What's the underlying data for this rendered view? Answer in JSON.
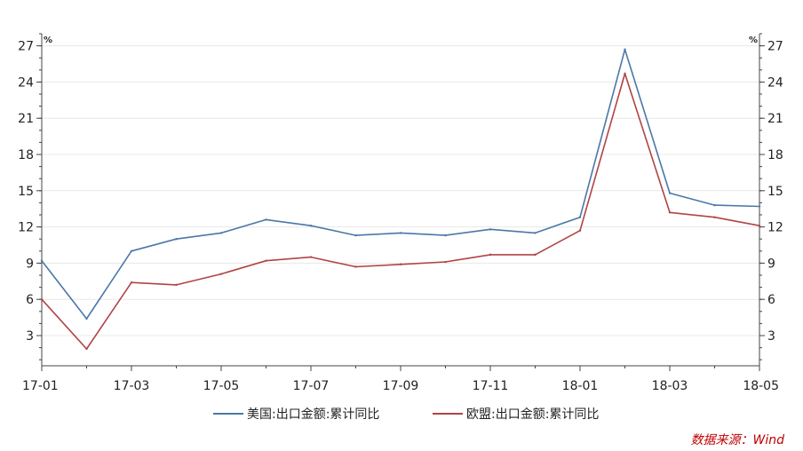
{
  "chart_data": {
    "type": "line",
    "x": [
      "17-01",
      "17-02",
      "17-03",
      "17-04",
      "17-05",
      "17-06",
      "17-07",
      "17-08",
      "17-09",
      "17-10",
      "17-11",
      "17-12",
      "18-01",
      "18-02",
      "18-03",
      "18-04",
      "18-05"
    ],
    "xtick_labels": [
      "17-01",
      "17-03",
      "17-05",
      "17-07",
      "17-09",
      "17-11",
      "18-01",
      "18-03",
      "18-05"
    ],
    "yticks": [
      3,
      6,
      9,
      12,
      15,
      18,
      21,
      24,
      27
    ],
    "ylim": [
      0.5,
      28
    ],
    "y_unit_left": "%",
    "y_unit_right": "%",
    "grid": true,
    "legend_position": "bottom-center",
    "series": [
      {
        "name": "美国:出口金额:累计同比",
        "color": "#4a78a8",
        "values": [
          9.2,
          4.4,
          10.0,
          11.0,
          11.5,
          12.6,
          12.1,
          11.3,
          11.5,
          11.3,
          11.8,
          11.5,
          12.8,
          26.7,
          14.8,
          13.8,
          13.7
        ]
      },
      {
        "name": "欧盟:出口金额:累计同比",
        "color": "#b04444",
        "values": [
          6.0,
          1.9,
          7.4,
          7.2,
          8.1,
          9.2,
          9.5,
          8.7,
          8.9,
          9.1,
          9.7,
          9.7,
          11.7,
          24.7,
          13.2,
          12.8,
          12.1
        ]
      }
    ]
  },
  "source": "数据来源：Wind"
}
